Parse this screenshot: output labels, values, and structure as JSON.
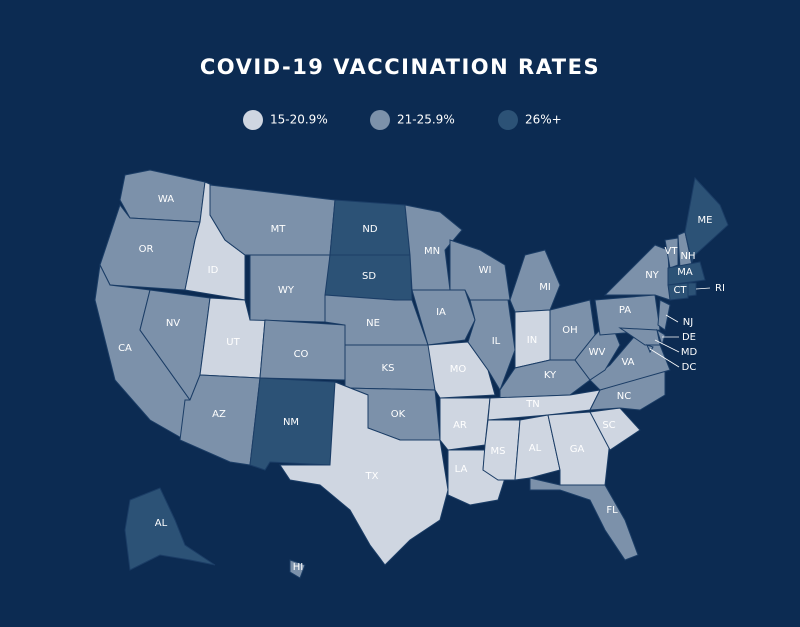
{
  "title": "COVID-19 VACCINATION RATES",
  "legend": [
    {
      "label": "15-20.9%",
      "color": "#cfd6e1"
    },
    {
      "label": "21-25.9%",
      "color": "#7c91aa"
    },
    {
      "label": "26%+",
      "color": "#2c5276"
    }
  ],
  "states": [
    {
      "label": "WA",
      "group": 1
    },
    {
      "label": "OR",
      "group": 1
    },
    {
      "label": "CA",
      "group": 1
    },
    {
      "label": "ID",
      "group": 0
    },
    {
      "label": "NV",
      "group": 1
    },
    {
      "label": "UT",
      "group": 0
    },
    {
      "label": "AZ",
      "group": 1
    },
    {
      "label": "MT",
      "group": 1
    },
    {
      "label": "WY",
      "group": 1
    },
    {
      "label": "CO",
      "group": 1
    },
    {
      "label": "NM",
      "group": 2
    },
    {
      "label": "ND",
      "group": 2
    },
    {
      "label": "SD",
      "group": 2
    },
    {
      "label": "NE",
      "group": 1
    },
    {
      "label": "KS",
      "group": 1
    },
    {
      "label": "OK",
      "group": 1
    },
    {
      "label": "TX",
      "group": 0
    },
    {
      "label": "MN",
      "group": 1
    },
    {
      "label": "IA",
      "group": 1
    },
    {
      "label": "MO",
      "group": 0
    },
    {
      "label": "AR",
      "group": 0
    },
    {
      "label": "LA",
      "group": 0
    },
    {
      "label": "WI",
      "group": 1
    },
    {
      "label": "IL",
      "group": 1
    },
    {
      "label": "MI",
      "group": 1
    },
    {
      "label": "IN",
      "group": 0
    },
    {
      "label": "OH",
      "group": 1
    },
    {
      "label": "KY",
      "group": 1
    },
    {
      "label": "TN",
      "group": 0
    },
    {
      "label": "MS",
      "group": 0
    },
    {
      "label": "AL",
      "group": 0
    },
    {
      "label": "GA",
      "group": 0
    },
    {
      "label": "FL",
      "group": 1
    },
    {
      "label": "SC",
      "group": 0
    },
    {
      "label": "NC",
      "group": 1
    },
    {
      "label": "VA",
      "group": 1
    },
    {
      "label": "WV",
      "group": 1
    },
    {
      "label": "PA",
      "group": 1
    },
    {
      "label": "NY",
      "group": 1
    },
    {
      "label": "NJ",
      "group": 1
    },
    {
      "label": "DE",
      "group": 1
    },
    {
      "label": "MD",
      "group": 1
    },
    {
      "label": "DC",
      "group": 1
    },
    {
      "label": "VT",
      "group": 1
    },
    {
      "label": "NH",
      "group": 1
    },
    {
      "label": "ME",
      "group": 2
    },
    {
      "label": "MA",
      "group": 2
    },
    {
      "label": "CT",
      "group": 2
    },
    {
      "label": "RI",
      "group": 2
    },
    {
      "label": "AL",
      "group": 2
    },
    {
      "label": "HI",
      "group": 1
    }
  ]
}
